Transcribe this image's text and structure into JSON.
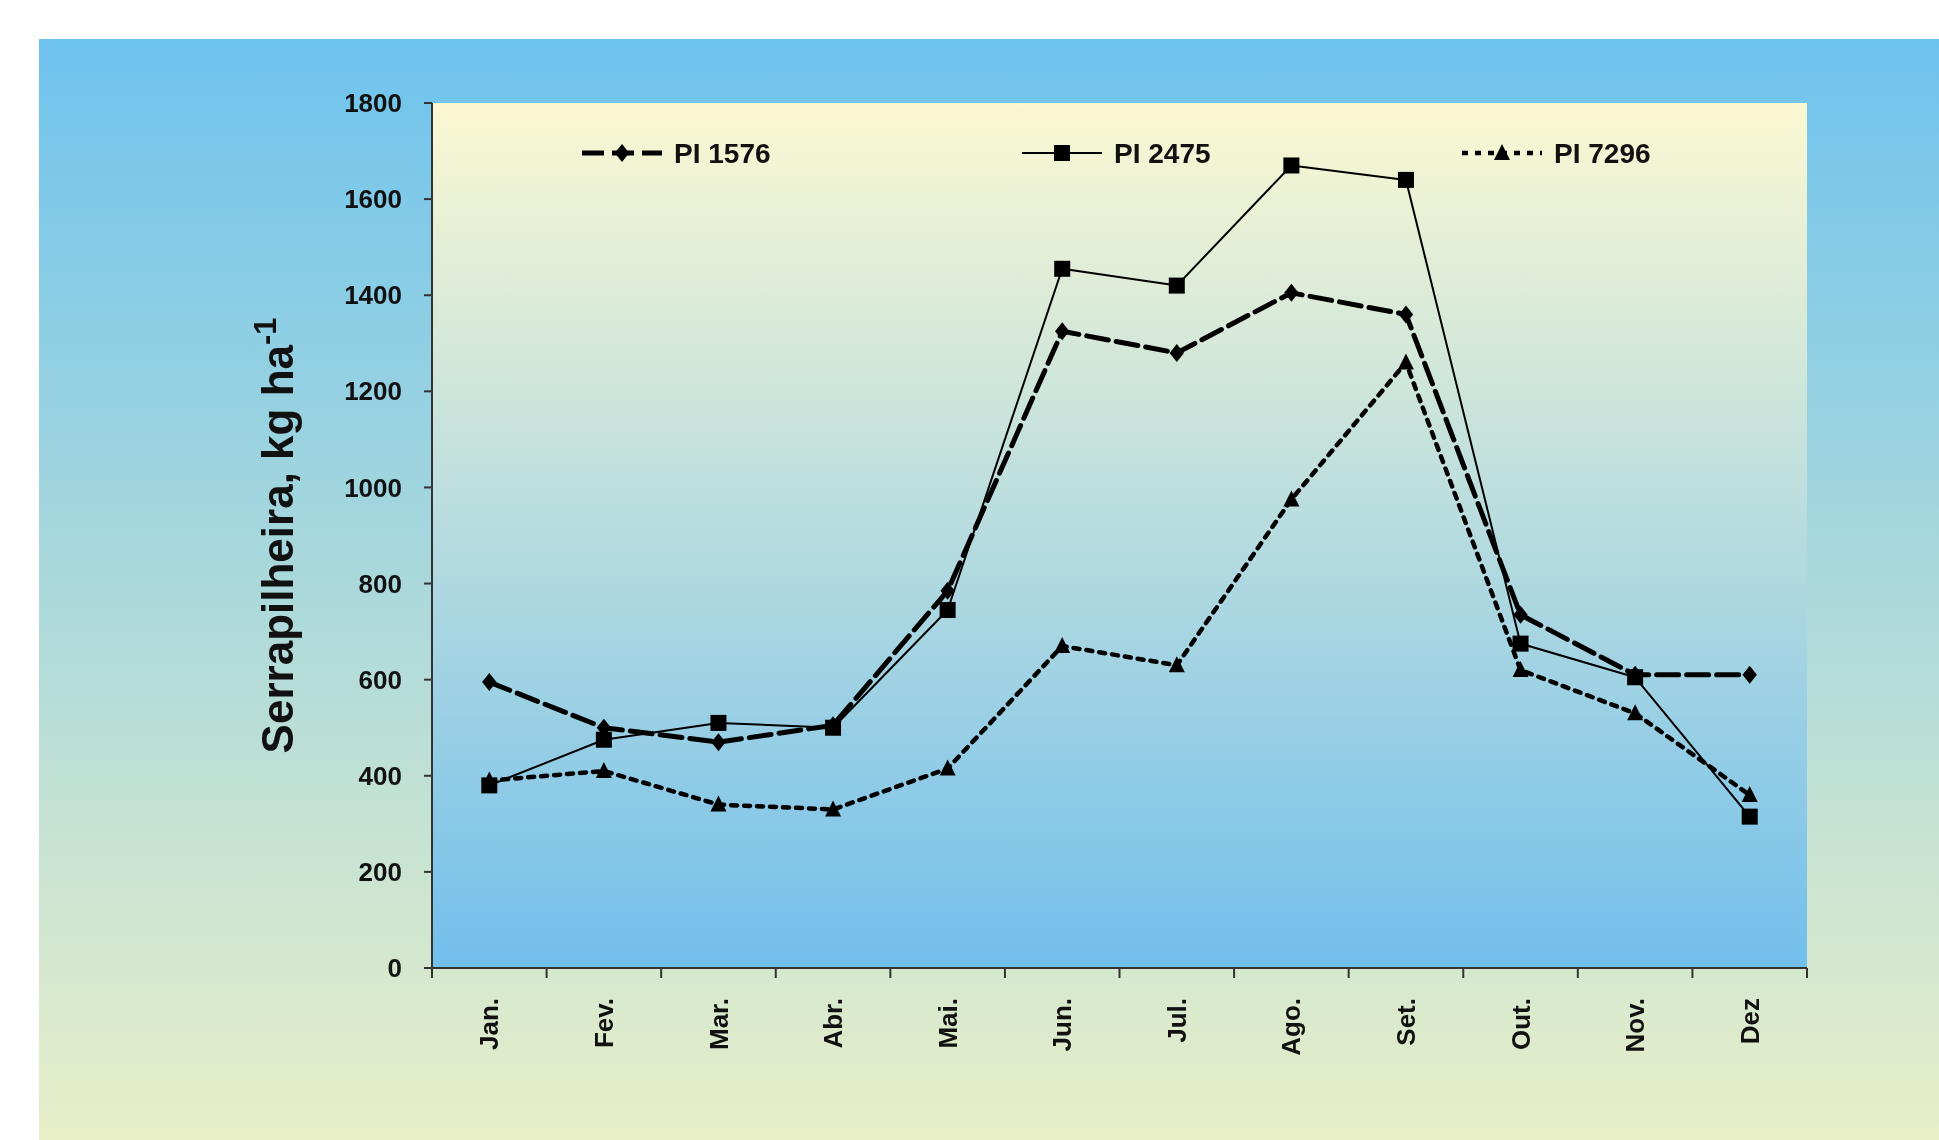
{
  "chart_data": {
    "type": "line",
    "ylabel": "Serrapilheira, kg ha$^{-1}$",
    "categories": [
      "Jan.",
      "Fev.",
      "Mar.",
      "Abr.",
      "Mai.",
      "Jun.",
      "Jul.",
      "Ago.",
      "Set.",
      "Out.",
      "Nov.",
      "Dez"
    ],
    "series": [
      {
        "name": "PI 1576",
        "color": "#000000",
        "marker": "diamond",
        "line_style": "dashed",
        "values": [
          595,
          500,
          470,
          505,
          785,
          1325,
          1280,
          1405,
          1360,
          735,
          610,
          610
        ]
      },
      {
        "name": "PI 2475",
        "color": "#000000",
        "marker": "square",
        "line_style": "solid",
        "values": [
          380,
          475,
          510,
          500,
          745,
          1455,
          1420,
          1670,
          1640,
          675,
          605,
          315
        ]
      },
      {
        "name": "PI 7296",
        "color": "#000000",
        "marker": "triangle",
        "line_style": "dotted",
        "values": [
          390,
          410,
          340,
          330,
          415,
          670,
          630,
          975,
          1260,
          620,
          530,
          360
        ]
      }
    ],
    "ylim": [
      0,
      1800
    ],
    "yticks": [
      0,
      200,
      400,
      600,
      800,
      1000,
      1200,
      1400,
      1600,
      1800
    ],
    "grid": false,
    "legend": "top"
  }
}
